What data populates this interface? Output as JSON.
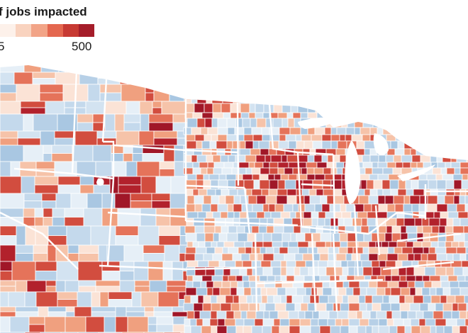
{
  "legend": {
    "title": "f jobs impacted",
    "min_label": "5",
    "max_label": "500",
    "scale_colors": [
      "#fdf1ea",
      "#f9d3bf",
      "#f2a487",
      "#e4674f",
      "#c73a33",
      "#a51d2a"
    ]
  },
  "map": {
    "subject": "Choropleth of US counties (contiguous states) colored by number of jobs impacted",
    "colors": {
      "water": "#ffffff",
      "no_data": "#cfe0ef",
      "low": "#b9d3e8",
      "borders": "#ffffff"
    }
  }
}
